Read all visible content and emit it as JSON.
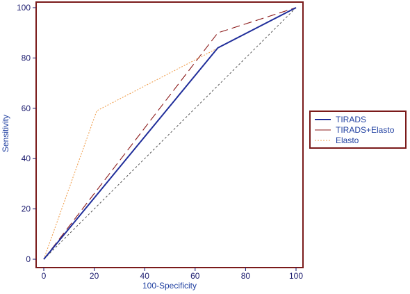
{
  "chart_data": {
    "type": "line",
    "title": "",
    "xlabel": "100-Specificity",
    "ylabel": "Sensitivity",
    "xlim": [
      0,
      100
    ],
    "ylim": [
      0,
      100
    ],
    "xticks": [
      0,
      20,
      40,
      60,
      80,
      100
    ],
    "yticks": [
      0,
      20,
      40,
      60,
      80,
      100
    ],
    "grid": false,
    "legend_position": "right",
    "frame_color": "#7a1a1a",
    "reference_line": {
      "x": [
        0,
        100
      ],
      "y": [
        0,
        100
      ],
      "color": "#555555",
      "style": "dashed"
    },
    "series": [
      {
        "name": "TIRADS",
        "x": [
          0,
          69,
          100
        ],
        "y": [
          0,
          84,
          100
        ],
        "color": "#1f2d9a",
        "style": "solid"
      },
      {
        "name": "TIRADS+Elasto",
        "x": [
          0,
          69,
          100
        ],
        "y": [
          0,
          90,
          100
        ],
        "color": "#8b1a1a",
        "style": "longdash"
      },
      {
        "name": "Elasto",
        "x": [
          0,
          21,
          100
        ],
        "y": [
          0,
          59,
          100
        ],
        "color": "#f0a050",
        "style": "dotted"
      }
    ]
  }
}
